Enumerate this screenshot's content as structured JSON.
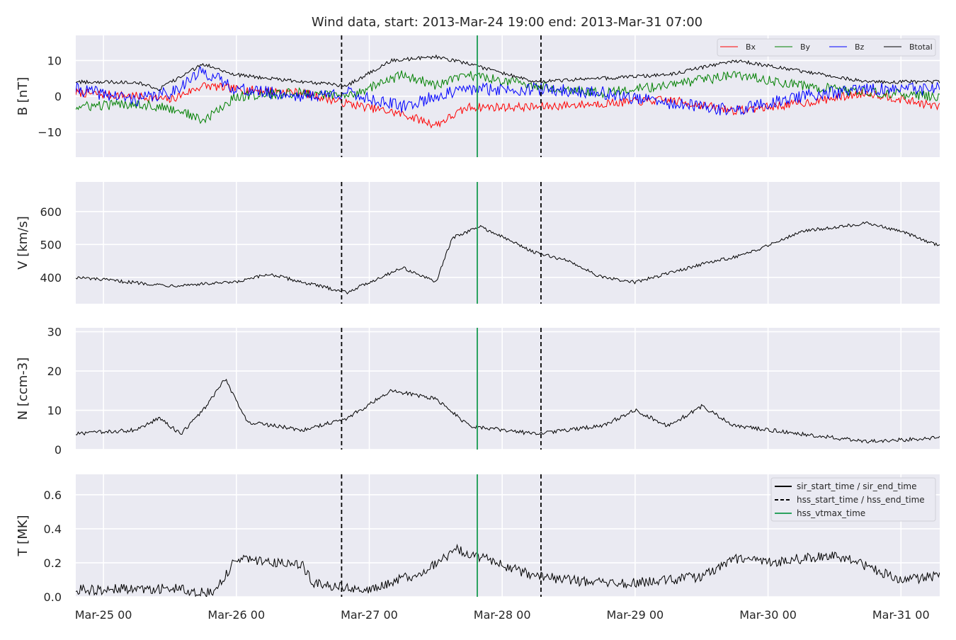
{
  "chart_data": {
    "type": "line",
    "title": "Wind data, start: 2013-Mar-24 19:00  end: 2013-Mar-31 07:00",
    "x_range": [
      "2013-03-24 19:00",
      "2013-03-31 07:00"
    ],
    "x_tick_labels": [
      "Mar-25 00",
      "Mar-26 00",
      "Mar-27 00",
      "Mar-28 00",
      "Mar-29 00",
      "Mar-30 00",
      "Mar-31 00"
    ],
    "x_ticks": [
      "2013-03-25 00:00",
      "2013-03-26 00:00",
      "2013-03-27 00:00",
      "2013-03-28 00:00",
      "2013-03-29 00:00",
      "2013-03-30 00:00",
      "2013-03-31 00:00"
    ],
    "grid": true,
    "event_lines": [
      {
        "name": "hss_start_time / hss_end_time",
        "style": "dashed",
        "color": "#000000",
        "times": [
          "2013-03-26 19:00",
          "2013-03-28 07:00"
        ]
      },
      {
        "name": "hss_vtmax_time",
        "style": "solid",
        "color": "#2ca25f",
        "times": [
          "2013-03-27 19:30"
        ]
      }
    ],
    "legends": {
      "top": {
        "placement": "top-right",
        "entries": [
          {
            "label": "Bx",
            "color": "#ff0000"
          },
          {
            "label": "By",
            "color": "#008000"
          },
          {
            "label": "Bz",
            "color": "#0000ff"
          },
          {
            "label": "Btotal",
            "color": "#000000"
          }
        ]
      },
      "bottom": {
        "placement": "top-right",
        "entries": [
          {
            "label": "sir_start_time / sir_end_time",
            "style": "solid",
            "color": "#000000"
          },
          {
            "label": "hss_start_time / hss_end_time",
            "style": "dashed",
            "color": "#000000"
          },
          {
            "label": "hss_vtmax_time",
            "style": "solid",
            "color": "#2ca25f"
          }
        ]
      }
    },
    "panels": [
      {
        "id": "B",
        "ylabel": "B [nT]",
        "ylim": [
          -17,
          17
        ],
        "yticks": [
          -10,
          0,
          10
        ],
        "ytick_labels": [
          "−10",
          "0",
          "10"
        ],
        "series": [
          {
            "name": "Bx",
            "color": "#ff0000",
            "noise": 1.2,
            "points": [
              [
                "2013-03-24 19:00",
                1
              ],
              [
                "2013-03-25 06:00",
                0
              ],
              [
                "2013-03-25 12:00",
                -1
              ],
              [
                "2013-03-25 18:00",
                3
              ],
              [
                "2013-03-26 00:00",
                2
              ],
              [
                "2013-03-26 12:00",
                1
              ],
              [
                "2013-03-26 20:00",
                -2
              ],
              [
                "2013-03-27 06:00",
                -5
              ],
              [
                "2013-03-27 12:00",
                -8
              ],
              [
                "2013-03-27 18:00",
                -3
              ],
              [
                "2013-03-28 06:00",
                -3
              ],
              [
                "2013-03-28 18:00",
                -2
              ],
              [
                "2013-03-29 06:00",
                -1
              ],
              [
                "2013-03-29 18:00",
                -4
              ],
              [
                "2013-03-30 06:00",
                -2
              ],
              [
                "2013-03-30 18:00",
                1
              ],
              [
                "2013-03-31 07:00",
                -3
              ]
            ]
          },
          {
            "name": "By",
            "color": "#008000",
            "noise": 1.4,
            "points": [
              [
                "2013-03-24 19:00",
                -3
              ],
              [
                "2013-03-25 06:00",
                -2
              ],
              [
                "2013-03-25 14:00",
                -4
              ],
              [
                "2013-03-25 18:00",
                -7
              ],
              [
                "2013-03-26 00:00",
                0
              ],
              [
                "2013-03-26 12:00",
                1
              ],
              [
                "2013-03-26 20:00",
                0
              ],
              [
                "2013-03-27 06:00",
                6
              ],
              [
                "2013-03-27 12:00",
                3
              ],
              [
                "2013-03-27 18:00",
                6
              ],
              [
                "2013-03-28 06:00",
                3
              ],
              [
                "2013-03-28 18:00",
                1
              ],
              [
                "2013-03-29 06:00",
                3
              ],
              [
                "2013-03-29 18:00",
                6
              ],
              [
                "2013-03-30 06:00",
                3
              ],
              [
                "2013-03-30 18:00",
                1
              ],
              [
                "2013-03-31 07:00",
                0
              ]
            ]
          },
          {
            "name": "Bz",
            "color": "#0000ff",
            "noise": 1.8,
            "points": [
              [
                "2013-03-24 19:00",
                2
              ],
              [
                "2013-03-25 06:00",
                -1
              ],
              [
                "2013-03-25 12:00",
                1
              ],
              [
                "2013-03-25 18:00",
                7
              ],
              [
                "2013-03-26 00:00",
                2
              ],
              [
                "2013-03-26 12:00",
                0
              ],
              [
                "2013-03-26 20:00",
                1
              ],
              [
                "2013-03-27 06:00",
                -3
              ],
              [
                "2013-03-27 12:00",
                0
              ],
              [
                "2013-03-27 18:00",
                2
              ],
              [
                "2013-03-28 06:00",
                2
              ],
              [
                "2013-03-28 18:00",
                1
              ],
              [
                "2013-03-29 06:00",
                -2
              ],
              [
                "2013-03-29 18:00",
                -4
              ],
              [
                "2013-03-30 06:00",
                0
              ],
              [
                "2013-03-30 18:00",
                2
              ],
              [
                "2013-03-31 07:00",
                2
              ]
            ]
          },
          {
            "name": "Btotal",
            "color": "#000000",
            "noise": 0.5,
            "points": [
              [
                "2013-03-24 19:00",
                4
              ],
              [
                "2013-03-25 06:00",
                4
              ],
              [
                "2013-03-25 10:00",
                2
              ],
              [
                "2013-03-25 18:00",
                9
              ],
              [
                "2013-03-26 00:00",
                6
              ],
              [
                "2013-03-26 12:00",
                4
              ],
              [
                "2013-03-26 20:00",
                3
              ],
              [
                "2013-03-27 04:00",
                10
              ],
              [
                "2013-03-27 12:00",
                11
              ],
              [
                "2013-03-27 18:00",
                9
              ],
              [
                "2013-03-28 06:00",
                4
              ],
              [
                "2013-03-28 18:00",
                5
              ],
              [
                "2013-03-29 06:00",
                6
              ],
              [
                "2013-03-29 18:00",
                10
              ],
              [
                "2013-03-30 06:00",
                7
              ],
              [
                "2013-03-30 18:00",
                4
              ],
              [
                "2013-03-31 07:00",
                4
              ]
            ]
          }
        ]
      },
      {
        "id": "V",
        "ylabel": "V [km/s]",
        "ylim": [
          320,
          690
        ],
        "yticks": [
          400,
          500,
          600
        ],
        "ytick_labels": [
          "400",
          "500",
          "600"
        ],
        "series": [
          {
            "name": "",
            "color": "#000000",
            "noise": 5,
            "points": [
              [
                "2013-03-24 19:00",
                400
              ],
              [
                "2013-03-25 12:00",
                375
              ],
              [
                "2013-03-26 00:00",
                385
              ],
              [
                "2013-03-26 06:00",
                410
              ],
              [
                "2013-03-26 12:00",
                385
              ],
              [
                "2013-03-26 20:00",
                355
              ],
              [
                "2013-03-27 12:00",
                385
              ],
              [
                "2013-03-27 06:00",
                430
              ],
              [
                "2013-03-27 15:00",
                520
              ],
              [
                "2013-03-27 20:00",
                555
              ],
              [
                "2013-03-28 06:00",
                475
              ],
              [
                "2013-03-28 12:00",
                450
              ],
              [
                "2013-03-28 18:00",
                400
              ],
              [
                "2013-03-29 00:00",
                385
              ],
              [
                "2013-03-29 12:00",
                440
              ],
              [
                "2013-03-29 20:00",
                470
              ],
              [
                "2013-03-30 06:00",
                540
              ],
              [
                "2013-03-30 18:00",
                565
              ],
              [
                "2013-03-31 00:00",
                540
              ],
              [
                "2013-03-31 07:00",
                495
              ]
            ]
          }
        ]
      },
      {
        "id": "N",
        "ylabel": "N [ccm-3]",
        "ylim": [
          0,
          31
        ],
        "yticks": [
          0,
          10,
          20,
          30
        ],
        "ytick_labels": [
          "0",
          "10",
          "20",
          "30"
        ],
        "series": [
          {
            "name": "",
            "color": "#000000",
            "noise": 0.5,
            "points": [
              [
                "2013-03-24 19:00",
                4
              ],
              [
                "2013-03-25 06:00",
                5
              ],
              [
                "2013-03-25 10:00",
                8
              ],
              [
                "2013-03-25 14:00",
                4
              ],
              [
                "2013-03-25 18:00",
                10
              ],
              [
                "2013-03-25 22:00",
                18
              ],
              [
                "2013-03-26 02:00",
                7
              ],
              [
                "2013-03-26 12:00",
                5
              ],
              [
                "2013-03-26 20:00",
                8
              ],
              [
                "2013-03-27 04:00",
                15
              ],
              [
                "2013-03-27 12:00",
                13
              ],
              [
                "2013-03-27 18:00",
                6
              ],
              [
                "2013-03-28 06:00",
                4
              ],
              [
                "2013-03-28 18:00",
                6
              ],
              [
                "2013-03-29 00:00",
                10
              ],
              [
                "2013-03-29 06:00",
                6
              ],
              [
                "2013-03-29 12:00",
                11
              ],
              [
                "2013-03-29 18:00",
                6
              ],
              [
                "2013-03-30 06:00",
                4
              ],
              [
                "2013-03-30 18:00",
                2
              ],
              [
                "2013-03-31 07:00",
                3
              ]
            ]
          }
        ]
      },
      {
        "id": "T",
        "ylabel": "T [MK]",
        "ylim": [
          0,
          0.72
        ],
        "yticks": [
          0.0,
          0.2,
          0.4,
          0.6
        ],
        "ytick_labels": [
          "0.0",
          "0.2",
          "0.4",
          "0.6"
        ],
        "series": [
          {
            "name": "",
            "color": "#000000",
            "noise": 0.03,
            "points": [
              [
                "2013-03-24 19:00",
                0.04
              ],
              [
                "2013-03-25 12:00",
                0.05
              ],
              [
                "2013-03-25 20:00",
                0.02
              ],
              [
                "2013-03-26 00:00",
                0.23
              ],
              [
                "2013-03-26 12:00",
                0.18
              ],
              [
                "2013-03-26 14:00",
                0.08
              ],
              [
                "2013-03-27 00:00",
                0.04
              ],
              [
                "2013-03-27 10:00",
                0.15
              ],
              [
                "2013-03-27 16:00",
                0.28
              ],
              [
                "2013-03-28 06:00",
                0.12
              ],
              [
                "2013-03-28 18:00",
                0.08
              ],
              [
                "2013-03-29 00:00",
                0.08
              ],
              [
                "2013-03-29 12:00",
                0.12
              ],
              [
                "2013-03-29 18:00",
                0.22
              ],
              [
                "2013-03-30 00:00",
                0.2
              ],
              [
                "2013-03-30 12:00",
                0.25
              ],
              [
                "2013-03-31 00:00",
                0.1
              ],
              [
                "2013-03-31 07:00",
                0.12
              ]
            ]
          }
        ]
      }
    ]
  }
}
